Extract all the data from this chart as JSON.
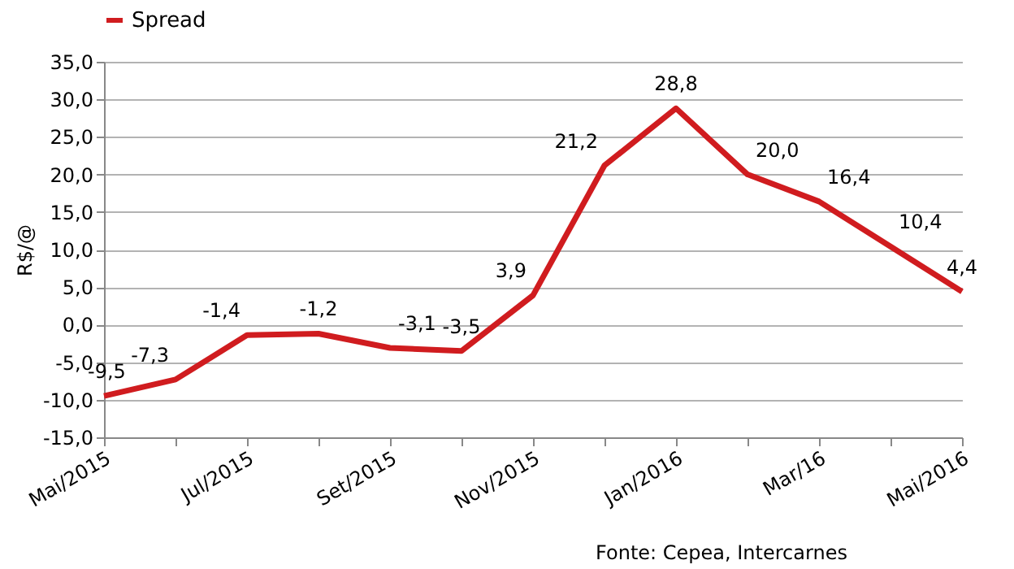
{
  "chart_data": {
    "type": "line",
    "ylabel": "R$/@",
    "categories": [
      "Mai/2015",
      null,
      "Jul/2015",
      null,
      "Set/2015",
      null,
      "Nov/2015",
      null,
      "Jan/2016",
      null,
      "Mar/16",
      null,
      "Mai/2016"
    ],
    "series": [
      {
        "name": "Spread",
        "color": "#d01c1f",
        "values": [
          -9.5,
          -7.3,
          -1.4,
          -1.2,
          -3.1,
          -3.5,
          3.9,
          21.2,
          28.8,
          20.0,
          16.4,
          10.4,
          4.4
        ],
        "value_labels": [
          "-9,5",
          "-7,3",
          "-1,4",
          "-1,2",
          "-3,1",
          "-3,5",
          "3,9",
          "21,2",
          "28,8",
          "20,0",
          "16,4",
          "10,4",
          "4,4"
        ]
      }
    ],
    "ylim": [
      -15,
      35
    ],
    "yticks": [
      {
        "value": -15,
        "label": "-15,0"
      },
      {
        "value": -10,
        "label": "-10,0"
      },
      {
        "value": -5,
        "label": "-5,0"
      },
      {
        "value": 0,
        "label": "0,0"
      },
      {
        "value": 5,
        "label": "5,0"
      },
      {
        "value": 10,
        "label": "10,0"
      },
      {
        "value": 15,
        "label": "15,0"
      },
      {
        "value": 20,
        "label": "20,0"
      },
      {
        "value": 25,
        "label": "25,0"
      },
      {
        "value": 30,
        "label": "30,0"
      },
      {
        "value": 35,
        "label": "35,0"
      }
    ],
    "grid": "y",
    "legend": "top",
    "marker": "none",
    "line_style": "solid",
    "annotations": [
      "Fonte: Cepea, Intercarnes"
    ]
  }
}
